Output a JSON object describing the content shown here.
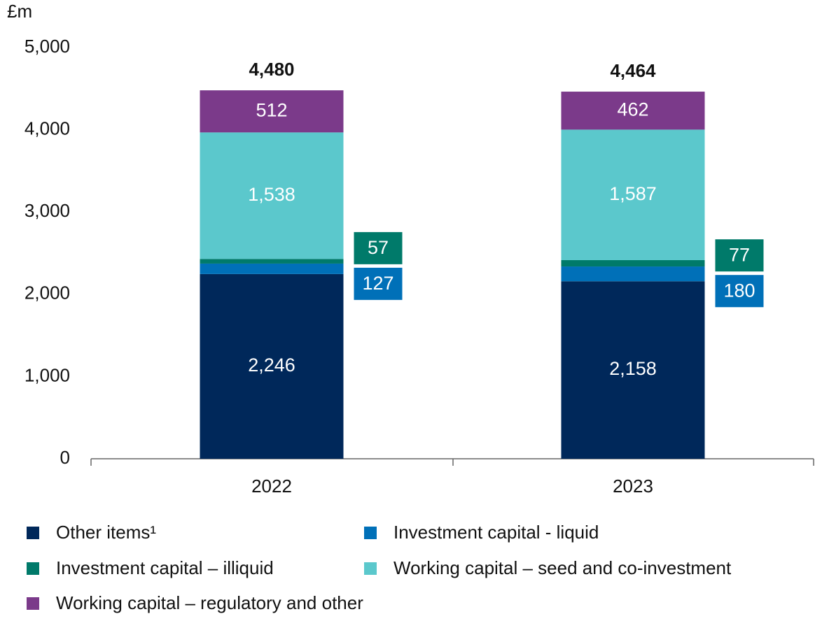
{
  "chart_data": {
    "type": "stacked-bar",
    "y_label": "£m",
    "categories": [
      "2022",
      "2023"
    ],
    "series": [
      {
        "name": "Other items¹",
        "color": "#00285a",
        "values": [
          2246,
          2158
        ],
        "value_labels": [
          "2,246",
          "2,158"
        ]
      },
      {
        "name": "Investment capital - liquid",
        "color": "#0070b8",
        "values": [
          127,
          180
        ]
      },
      {
        "name": "Investment capital – illiquid",
        "color": "#007a6a",
        "values": [
          57,
          77
        ]
      },
      {
        "name": "Working capital – seed and co-investment",
        "color": "#5bc8cc",
        "values": [
          1538,
          1587
        ],
        "value_labels": [
          "1,538",
          "1,587"
        ]
      },
      {
        "name": "Working capital – regulatory and other",
        "color": "#7b3a8a",
        "values": [
          512,
          462
        ]
      }
    ],
    "totals": [
      4480,
      4464
    ],
    "total_labels": [
      "4,480",
      "4,464"
    ],
    "ylim": [
      0,
      5000
    ],
    "yticks": [
      0,
      {
        "value": 1000,
        "label": "1,000"
      },
      {
        "value": 2000,
        "label": "2,000"
      },
      {
        "value": 3000,
        "label": "3,000"
      },
      {
        "value": 4000,
        "label": "4,000"
      },
      {
        "value": 5000,
        "label": "5,000"
      }
    ]
  }
}
